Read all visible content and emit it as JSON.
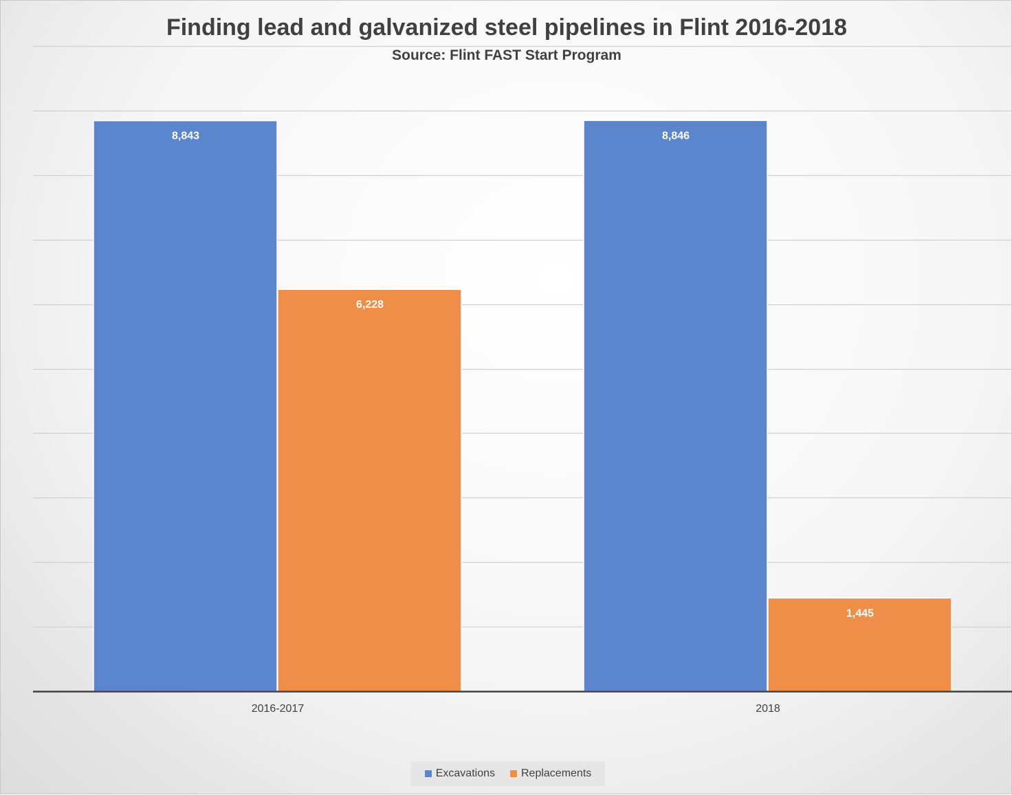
{
  "chart_data": {
    "type": "bar",
    "title": "Finding lead and galvanized steel pipelines in Flint 2016-2018",
    "subtitle": "Source: Flint FAST Start Program",
    "categories": [
      "2016-2017",
      "2018"
    ],
    "series": [
      {
        "name": "Excavations",
        "values": [
          8843,
          8846
        ],
        "labels": [
          "8,843",
          "8,846"
        ],
        "color": "#5b85cd"
      },
      {
        "name": "Replacements",
        "values": [
          6228,
          1445
        ],
        "labels": [
          "6,228",
          "1,445"
        ],
        "color": "#ee8e48"
      }
    ],
    "ylim": [
      0,
      10000
    ],
    "y_gridline_step": 1000,
    "y_tick_labels_shown": false,
    "grid": true,
    "legend_position": "bottom"
  }
}
